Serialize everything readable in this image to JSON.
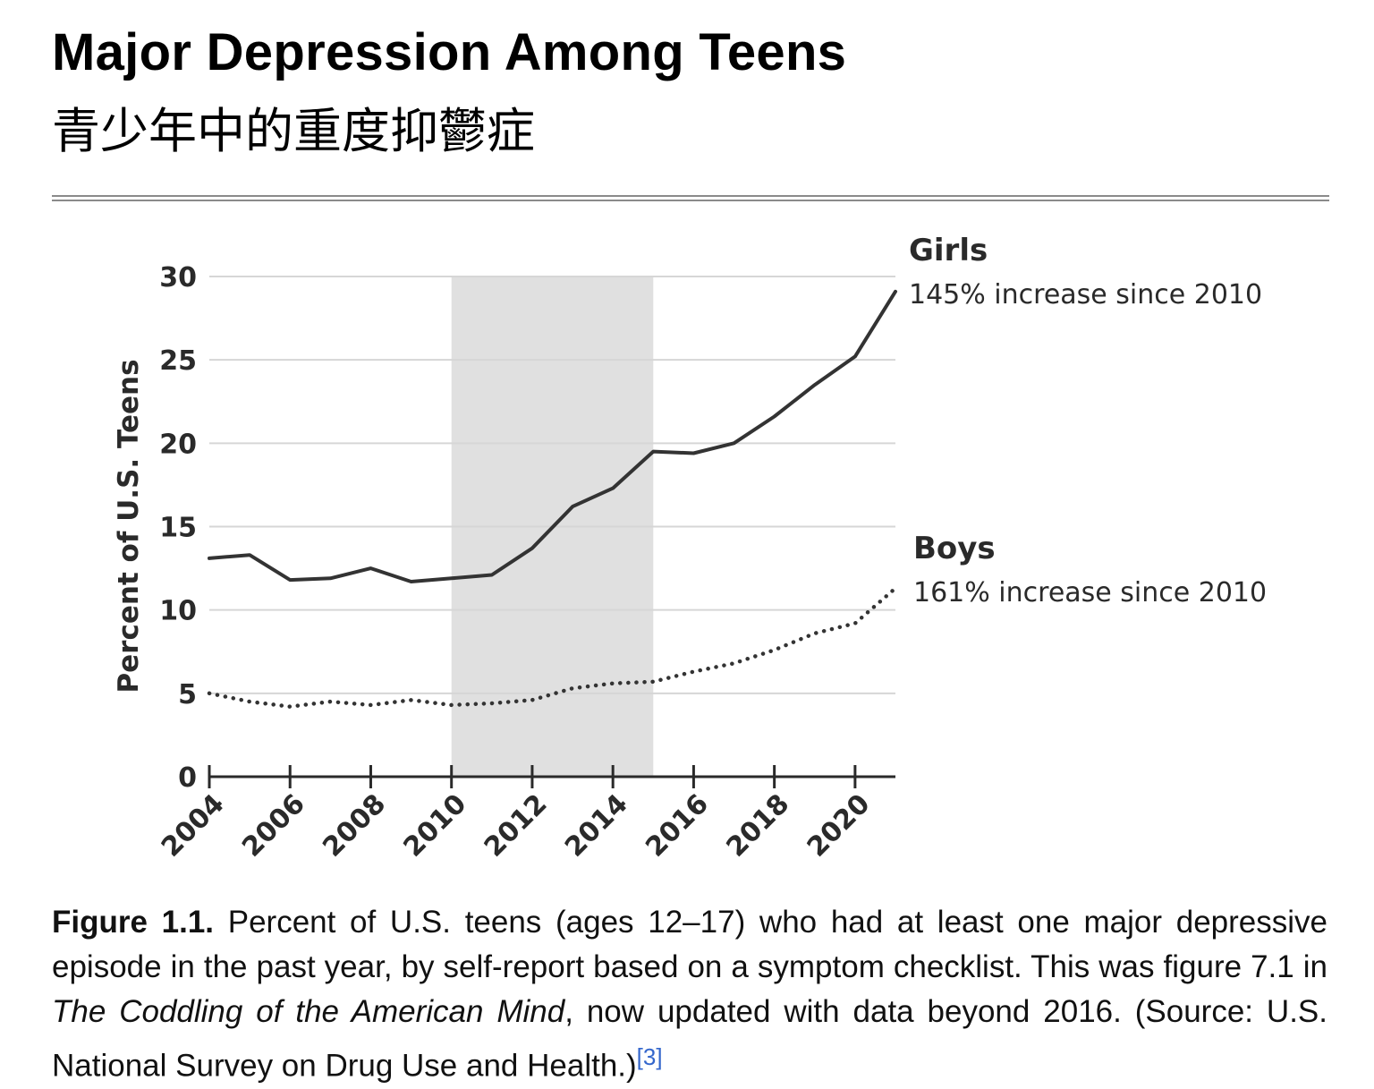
{
  "header": {
    "title": "Major Depression Among Teens",
    "subtitle": "青少年中的重度抑鬱症"
  },
  "chart_data": {
    "type": "line",
    "title": "Major Depression Among Teens",
    "xlabel": "",
    "ylabel": "Percent of U.S. Teens",
    "xlim": [
      2004,
      2021
    ],
    "ylim": [
      0,
      30
    ],
    "grid": true,
    "y_ticks": [
      0,
      5,
      10,
      15,
      20,
      25,
      30
    ],
    "x_ticks": [
      2004,
      2006,
      2008,
      2010,
      2012,
      2014,
      2016,
      2018,
      2020
    ],
    "x_tick_labels": [
      "2004",
      "2006",
      "2008",
      "2010",
      "2012",
      "2014",
      "2016",
      "2018",
      "2020"
    ],
    "y_tick_labels": [
      "0",
      "5",
      "10",
      "15",
      "20",
      "25",
      "30"
    ],
    "shaded_region": {
      "x_start": 2010,
      "x_end": 2015,
      "color": "#e0e0e0"
    },
    "x": [
      2004,
      2005,
      2006,
      2007,
      2008,
      2009,
      2010,
      2011,
      2012,
      2013,
      2014,
      2015,
      2016,
      2017,
      2018,
      2019,
      2020,
      2021
    ],
    "series": [
      {
        "name": "Girls",
        "note": "145% increase since 2010",
        "style": "solid",
        "color": "#333333",
        "values": [
          13.1,
          13.3,
          11.8,
          11.9,
          12.5,
          11.7,
          11.9,
          12.1,
          13.7,
          16.2,
          17.3,
          19.5,
          19.4,
          20.0,
          21.6,
          23.5,
          25.2,
          29.1
        ]
      },
      {
        "name": "Boys",
        "note": "161% increase since 2010",
        "style": "dotted",
        "color": "#333333",
        "values": [
          5.0,
          4.5,
          4.2,
          4.5,
          4.3,
          4.6,
          4.3,
          4.4,
          4.6,
          5.3,
          5.6,
          5.7,
          6.3,
          6.8,
          7.6,
          8.6,
          9.2,
          11.3
        ]
      }
    ]
  },
  "caption": {
    "label": "Figure 1.1.",
    "text1": " Percent of U.S. teens (ages 12–17) who had at least one major depressive episode in the past year, by self-report based on a symptom checklist. This was figure 7.1 in ",
    "book": "The Coddling of the American Mind",
    "text2": ", now updated with data beyond 2016. (Source: U.S. National Survey on Drug Use and Health.)",
    "ref": "[3]"
  }
}
